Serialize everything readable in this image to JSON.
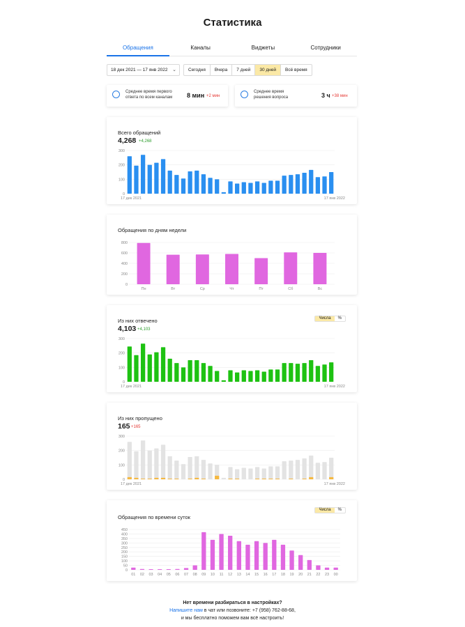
{
  "page": {
    "title": "Статистика"
  },
  "tabs": [
    {
      "label": "Обращения",
      "active": true
    },
    {
      "label": "Каналы",
      "active": false
    },
    {
      "label": "Виджеты",
      "active": false
    },
    {
      "label": "Сотрудники",
      "active": false
    }
  ],
  "filters": {
    "date_range": "18 дек 2021 — 17 янв 2022",
    "periods": [
      {
        "label": "Сегодня",
        "active": false
      },
      {
        "label": "Вчера",
        "active": false
      },
      {
        "label": "7 дней",
        "active": false
      },
      {
        "label": "30 дней",
        "active": true
      },
      {
        "label": "Всё время",
        "active": false
      }
    ]
  },
  "summary": {
    "first_response": {
      "label_line1": "Среднее время первого",
      "label_line2": "ответа по всем каналам",
      "value": "8 мин",
      "delta": "+2 мин"
    },
    "resolution": {
      "label_line1": "Среднее время",
      "label_line2": "решения вопроса",
      "value": "3 ч",
      "delta": "+38 мин"
    }
  },
  "colors": {
    "accent": "#1a73e8",
    "blue_bar": "#2a8ff0",
    "pink_bar": "#e067e0",
    "green_bar": "#1ec212",
    "grey_bar": "#e3e3e3",
    "orange_bar": "#f5b841",
    "positive": "#2e9e2e",
    "negative": "#e53935",
    "toggle_active": "#fbe9a6"
  },
  "toggle": {
    "numbers": "Числа",
    "percent": "%"
  },
  "chart_data": [
    {
      "type": "bar",
      "title": "Всего обращений",
      "total": "4,268",
      "delta": "+4,268",
      "x_start": "17 дек 2021",
      "x_end": "17 янв 2022",
      "ylim": [
        0,
        300
      ],
      "yticks": [
        0,
        100,
        200,
        300
      ],
      "series": [
        {
          "values": [
            260,
            195,
            270,
            200,
            215,
            240,
            160,
            130,
            105,
            155,
            160,
            135,
            110,
            100,
            10,
            85,
            70,
            80,
            75,
            85,
            75,
            90,
            90,
            125,
            130,
            135,
            145,
            165,
            115,
            120,
            150
          ]
        }
      ]
    },
    {
      "type": "bar",
      "title": "Обращения по дням недели",
      "categories": [
        "Пн",
        "Вт",
        "Ср",
        "Чт",
        "Пт",
        "Сб",
        "Вс"
      ],
      "ylim": [
        0,
        800
      ],
      "yticks": [
        0,
        200,
        400,
        600,
        800
      ],
      "series": [
        {
          "values": [
            790,
            565,
            570,
            580,
            500,
            610,
            600
          ]
        }
      ]
    },
    {
      "type": "bar",
      "title": "Из них отвечено",
      "total": "4,103",
      "delta": "+4,103",
      "x_start": "17 дек 2021",
      "x_end": "17 янв 2022",
      "ylim": [
        0,
        300
      ],
      "yticks": [
        0,
        100,
        200,
        300
      ],
      "series": [
        {
          "values": [
            245,
            185,
            265,
            190,
            205,
            240,
            160,
            130,
            100,
            150,
            150,
            130,
            110,
            75,
            10,
            80,
            65,
            80,
            75,
            80,
            70,
            85,
            85,
            130,
            130,
            125,
            130,
            150,
            110,
            120,
            135
          ]
        }
      ]
    },
    {
      "type": "bar",
      "title": "Из них пропущено",
      "total": "165",
      "delta": "+165",
      "x_start": "17 дек 2021",
      "x_end": "17 янв 2022",
      "ylim": [
        0,
        300
      ],
      "yticks": [
        0,
        100,
        200,
        300
      ],
      "series": [
        {
          "values": [
            260,
            195,
            270,
            200,
            215,
            240,
            160,
            130,
            105,
            155,
            160,
            135,
            110,
            100,
            10,
            85,
            70,
            80,
            75,
            85,
            75,
            90,
            90,
            125,
            130,
            135,
            145,
            165,
            115,
            120,
            150
          ]
        },
        {
          "values": [
            15,
            10,
            5,
            5,
            10,
            10,
            5,
            5,
            0,
            5,
            10,
            5,
            0,
            25,
            0,
            5,
            5,
            0,
            0,
            5,
            5,
            5,
            5,
            0,
            5,
            0,
            5,
            15,
            0,
            0,
            15
          ]
        }
      ]
    },
    {
      "type": "bar",
      "title": "Обращения по времени суток",
      "categories": [
        "01",
        "02",
        "03",
        "04",
        "05",
        "06",
        "07",
        "08",
        "09",
        "10",
        "11",
        "12",
        "13",
        "14",
        "15",
        "16",
        "17",
        "18",
        "19",
        "20",
        "21",
        "22",
        "23",
        "00"
      ],
      "ylim": [
        0,
        450
      ],
      "yticks": [
        0,
        50,
        100,
        150,
        200,
        250,
        300,
        350,
        400,
        450
      ],
      "series": [
        {
          "values": [
            25,
            10,
            5,
            5,
            5,
            10,
            20,
            50,
            420,
            335,
            400,
            380,
            320,
            280,
            320,
            300,
            335,
            280,
            215,
            165,
            110,
            50,
            25,
            25
          ]
        }
      ]
    }
  ],
  "footer": {
    "question": "Нет времени разбираться в настройках?",
    "link": "Напишите нам",
    "line2_rest": " в чат или позвоните: +7 (958) 762-88-68,",
    "line3": "и мы бесплатно поможем вам всё настроить!"
  }
}
